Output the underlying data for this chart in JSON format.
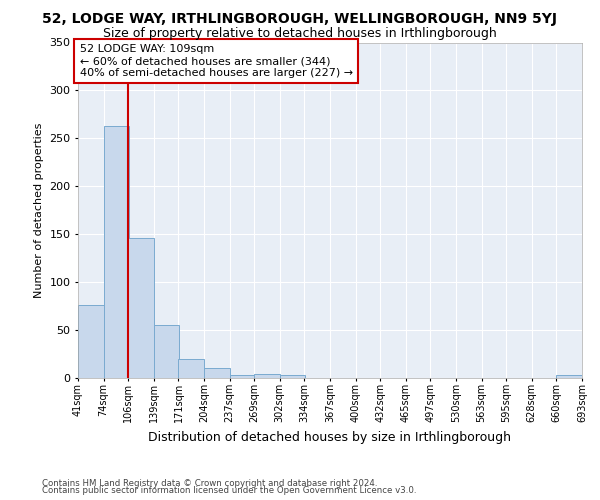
{
  "title": "52, LODGE WAY, IRTHLINGBOROUGH, WELLINGBOROUGH, NN9 5YJ",
  "subtitle": "Size of property relative to detached houses in Irthlingborough",
  "xlabel": "Distribution of detached houses by size in Irthlingborough",
  "ylabel": "Number of detached properties",
  "footer_line1": "Contains HM Land Registry data © Crown copyright and database right 2024.",
  "footer_line2": "Contains public sector information licensed under the Open Government Licence v3.0.",
  "bar_left_edges": [
    41,
    74,
    106,
    139,
    171,
    204,
    237,
    269,
    302,
    334,
    367,
    400,
    432,
    465,
    497,
    530,
    563,
    595,
    628,
    660
  ],
  "bar_heights": [
    76,
    263,
    146,
    55,
    19,
    10,
    3,
    4,
    3,
    0,
    0,
    0,
    0,
    0,
    0,
    0,
    0,
    0,
    0,
    3
  ],
  "bin_width": 33,
  "tick_labels": [
    "41sqm",
    "74sqm",
    "106sqm",
    "139sqm",
    "171sqm",
    "204sqm",
    "237sqm",
    "269sqm",
    "302sqm",
    "334sqm",
    "367sqm",
    "400sqm",
    "432sqm",
    "465sqm",
    "497sqm",
    "530sqm",
    "563sqm",
    "595sqm",
    "628sqm",
    "660sqm",
    "693sqm"
  ],
  "bar_color": "#c8d8ec",
  "bar_edge_color": "#7aaad0",
  "vline_x": 106,
  "vline_color": "#cc0000",
  "annotation_line1": "52 LODGE WAY: 109sqm",
  "annotation_line2": "← 60% of detached houses are smaller (344)",
  "annotation_line3": "40% of semi-detached houses are larger (227) →",
  "annotation_box_color": "#ffffff",
  "annotation_box_edge": "#cc0000",
  "ylim": [
    0,
    350
  ],
  "yticks": [
    0,
    50,
    100,
    150,
    200,
    250,
    300,
    350
  ],
  "fig_bg_color": "#ffffff",
  "plot_bg_color": "#e8eef6",
  "grid_color": "#ffffff",
  "title_fontsize": 10,
  "subtitle_fontsize": 9,
  "ylabel_fontsize": 8,
  "xlabel_fontsize": 9,
  "annotation_fontsize": 8,
  "tick_fontsize": 7,
  "ytick_fontsize": 8
}
